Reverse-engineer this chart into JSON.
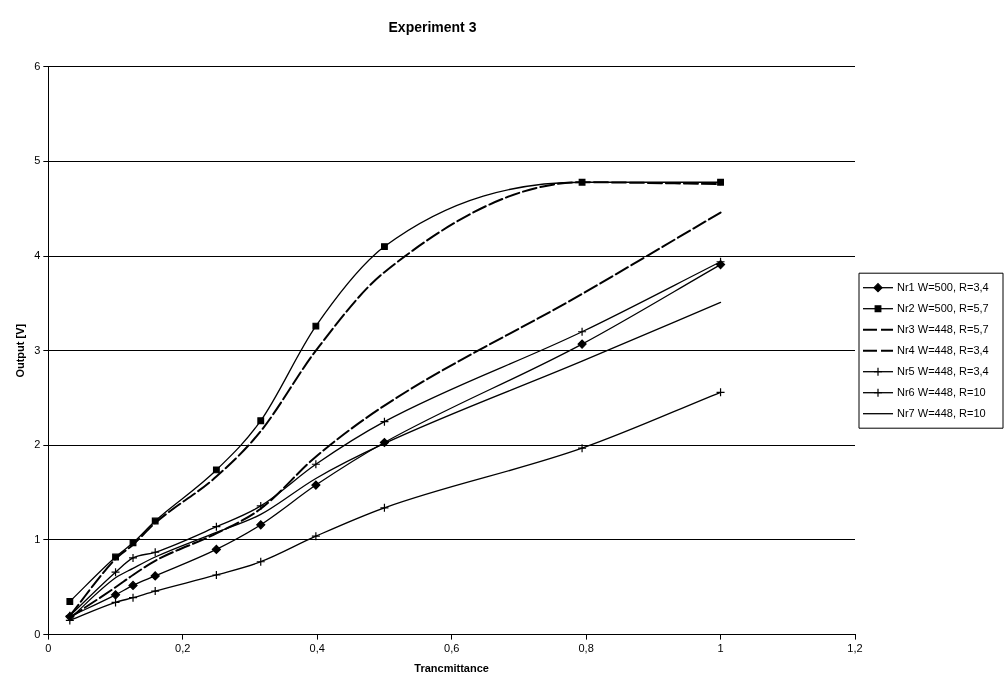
{
  "chart_data": {
    "type": "line",
    "title": "Experiment 3",
    "xlabel": "Trancmittance",
    "ylabel": "Output [V]",
    "x": [
      0.032,
      0.1,
      0.126,
      0.159,
      0.25,
      0.316,
      0.398,
      0.5,
      0.794,
      1.0
    ],
    "series": [
      {
        "name": "Nr1 W=500, R=3,4",
        "color": "#000000",
        "marker": "diamond",
        "line_style": "solid",
        "values": [
          0.19,
          0.42,
          0.52,
          0.62,
          0.9,
          1.16,
          1.58,
          2.03,
          3.07,
          3.91
        ]
      },
      {
        "name": "Nr2 W=500, R=5,7",
        "color": "#000000",
        "marker": "square",
        "line_style": "solid",
        "values": [
          0.35,
          0.82,
          0.97,
          1.2,
          1.74,
          2.26,
          3.26,
          4.1,
          4.78,
          4.78
        ]
      },
      {
        "name": "Nr3 W=448, R=5,7",
        "color": "#000000",
        "marker": "none",
        "line_style": "dashed",
        "values": [
          0.2,
          0.8,
          0.95,
          1.18,
          1.67,
          2.15,
          3.0,
          3.83,
          4.78,
          4.76
        ]
      },
      {
        "name": "Nr4 W=448, R=3,4",
        "color": "#000000",
        "marker": "none",
        "line_style": "dashed",
        "values": [
          0.18,
          0.5,
          0.63,
          0.78,
          1.07,
          1.33,
          1.88,
          2.42,
          3.6,
          4.46
        ]
      },
      {
        "name": "Nr5 W=448, R=3,4",
        "color": "#000000",
        "marker": "cross",
        "line_style": "solid",
        "values": [
          0.15,
          0.34,
          0.39,
          0.46,
          0.63,
          0.77,
          1.04,
          1.34,
          1.97,
          2.56
        ]
      },
      {
        "name": "Nr6 W=448, R=10",
        "color": "#000000",
        "marker": "cross",
        "line_style": "solid",
        "values": [
          0.2,
          0.66,
          0.81,
          0.87,
          1.14,
          1.36,
          1.8,
          2.25,
          3.2,
          3.94
        ]
      },
      {
        "name": "Nr7 W=448, R=10",
        "color": "#000000",
        "marker": "none",
        "line_style": "solid",
        "values": [
          0.17,
          0.6,
          0.7,
          0.82,
          1.08,
          1.27,
          1.65,
          2.02,
          2.89,
          3.51
        ]
      }
    ],
    "xlim": [
      0,
      1.2
    ],
    "xticks": [
      0,
      {
        "value": 0.2,
        "label": "0,2"
      },
      {
        "value": 0.4,
        "label": "0,4"
      },
      {
        "value": 0.6,
        "label": "0,6"
      },
      {
        "value": 0.8,
        "label": "0,8"
      },
      1,
      {
        "value": 1.2,
        "label": "1,2"
      }
    ],
    "ylim": [
      0,
      6
    ],
    "yticks": [
      0,
      1,
      2,
      3,
      4,
      5,
      6
    ],
    "grid": "y",
    "legend": "right"
  }
}
